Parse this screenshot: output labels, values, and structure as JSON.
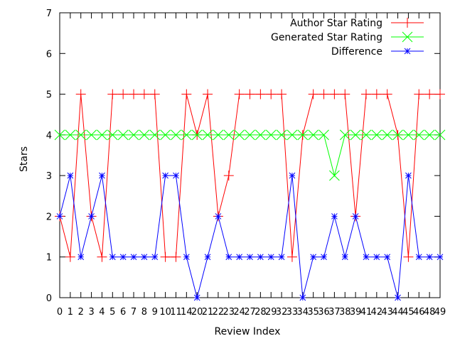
{
  "chart_data": {
    "type": "line",
    "xlabel": "Review Index",
    "ylabel": "Stars",
    "ylim": [
      0,
      7
    ],
    "yticks": [
      0,
      1,
      2,
      3,
      4,
      5,
      6,
      7
    ],
    "grid": false,
    "legend_position": "top-right",
    "categories": [
      "0",
      "1",
      "2",
      "3",
      "4",
      "5",
      "6",
      "7",
      "8",
      "9",
      "10",
      "11",
      "14",
      "20",
      "21",
      "22",
      "23",
      "24",
      "27",
      "28",
      "29",
      "32",
      "33",
      "34",
      "35",
      "36",
      "37",
      "38",
      "39",
      "41",
      "42",
      "43",
      "44",
      "45",
      "46",
      "48",
      "49"
    ],
    "series": [
      {
        "name": "Author Star Rating",
        "color": "#ff0000",
        "marker": "plus",
        "values": [
          2,
          1,
          5,
          2,
          1,
          5,
          5,
          5,
          5,
          5,
          1,
          1,
          5,
          4,
          5,
          2,
          3,
          5,
          5,
          5,
          5,
          5,
          1,
          4,
          5,
          5,
          5,
          5,
          2,
          5,
          5,
          5,
          4,
          1,
          5,
          5,
          5
        ]
      },
      {
        "name": "Generated Star Rating",
        "color": "#00ff00",
        "marker": "x",
        "values": [
          4,
          4,
          4,
          4,
          4,
          4,
          4,
          4,
          4,
          4,
          4,
          4,
          4,
          4,
          4,
          4,
          4,
          4,
          4,
          4,
          4,
          4,
          4,
          4,
          4,
          4,
          3,
          4,
          4,
          4,
          4,
          4,
          4,
          4,
          4,
          4,
          4
        ]
      },
      {
        "name": "Difference",
        "color": "#0000ff",
        "marker": "star",
        "values": [
          2,
          3,
          1,
          2,
          3,
          1,
          1,
          1,
          1,
          1,
          3,
          3,
          1,
          0,
          1,
          2,
          1,
          1,
          1,
          1,
          1,
          1,
          3,
          0,
          1,
          1,
          2,
          1,
          2,
          1,
          1,
          1,
          0,
          3,
          1,
          1,
          1
        ]
      }
    ]
  }
}
